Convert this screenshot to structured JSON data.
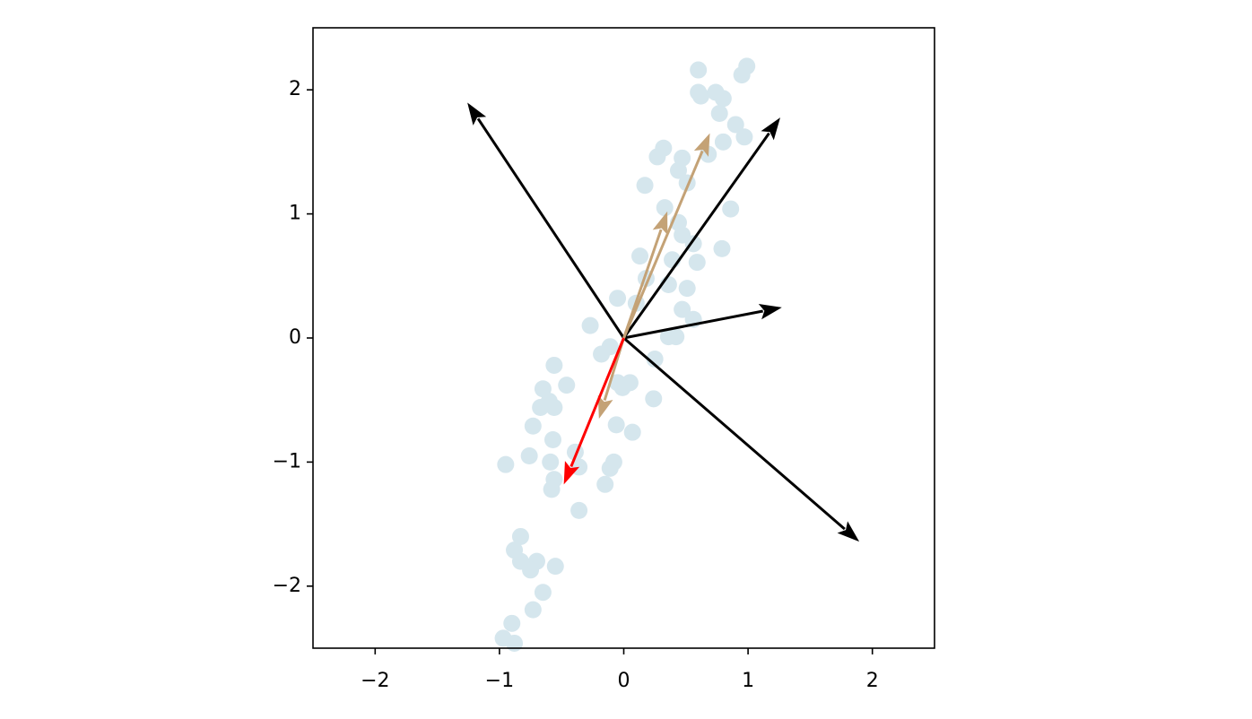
{
  "chart_data": {
    "type": "scatter",
    "xlim": [
      -2.5,
      2.5
    ],
    "ylim": [
      -2.5,
      2.5
    ],
    "xticks": [
      {
        "value": -2,
        "label": "−2"
      },
      {
        "value": -1,
        "label": "−1"
      },
      0,
      1,
      2
    ],
    "yticks": [
      {
        "value": -2,
        "label": "−2"
      },
      {
        "value": -1,
        "label": "−1"
      },
      0,
      1,
      2
    ],
    "points": {
      "color": "#d5e6ed",
      "x": [
        0.6,
        0.99,
        0.95,
        0.6,
        0.62,
        0.74,
        0.8,
        0.77,
        0.9,
        0.97,
        0.8,
        0.32,
        0.27,
        0.47,
        0.68,
        0.44,
        0.51,
        0.17,
        0.33,
        0.86,
        0.44,
        0.47,
        0.56,
        0.79,
        0.13,
        0.39,
        0.59,
        0.18,
        0.36,
        0.51,
        -0.05,
        0.1,
        0.47,
        0.56,
        -0.27,
        0.42,
        0.36,
        -0.11,
        -0.18,
        0.25,
        -0.56,
        -0.46,
        -0.65,
        -0.05,
        0.05,
        -0.01,
        0.24,
        -0.6,
        -0.56,
        -0.67,
        -0.73,
        -0.06,
        0.07,
        -0.57,
        -0.76,
        -0.39,
        -0.59,
        -0.95,
        -0.08,
        -0.11,
        -0.36,
        -0.56,
        -0.58,
        -0.15,
        -0.36,
        -0.83,
        -0.88,
        -0.83,
        -0.7,
        -0.75,
        -0.55,
        -0.65,
        -0.73,
        -0.9,
        -0.97,
        -0.88
      ],
      "y": [
        2.16,
        2.19,
        2.12,
        1.98,
        1.95,
        1.98,
        1.93,
        1.81,
        1.72,
        1.62,
        1.58,
        1.53,
        1.46,
        1.45,
        1.48,
        1.35,
        1.25,
        1.23,
        1.05,
        1.04,
        0.93,
        0.83,
        0.76,
        0.72,
        0.66,
        0.63,
        0.61,
        0.48,
        0.43,
        0.4,
        0.32,
        0.28,
        0.23,
        0.15,
        0.1,
        0.01,
        0.01,
        -0.07,
        -0.13,
        -0.17,
        -0.22,
        -0.38,
        -0.41,
        -0.36,
        -0.36,
        -0.4,
        -0.49,
        -0.51,
        -0.56,
        -0.56,
        -0.71,
        -0.7,
        -0.76,
        -0.82,
        -0.95,
        -0.92,
        -1.0,
        -1.02,
        -1.0,
        -1.05,
        -1.04,
        -1.14,
        -1.22,
        -1.18,
        -1.39,
        -1.6,
        -1.71,
        -1.8,
        -1.8,
        -1.87,
        -1.84,
        -2.05,
        -2.19,
        -2.3,
        -2.42,
        -2.46
      ]
    },
    "arrows": [
      {
        "color": "#000000",
        "x": [
          0,
          -1.24
        ],
        "y": [
          0,
          1.87
        ]
      },
      {
        "color": "#000000",
        "x": [
          0,
          1.24
        ],
        "y": [
          0,
          1.75
        ]
      },
      {
        "color": "#000000",
        "x": [
          0,
          1.24
        ],
        "y": [
          0,
          0.24
        ]
      },
      {
        "color": "#000000",
        "x": [
          0,
          1.87
        ],
        "y": [
          0,
          -1.62
        ]
      },
      {
        "color": "#c4a276",
        "x": [
          0,
          0.68
        ],
        "y": [
          0,
          1.62
        ]
      },
      {
        "color": "#c4a276",
        "x": [
          0,
          0.34
        ],
        "y": [
          0,
          0.99
        ]
      },
      {
        "color": "#c4a276",
        "x": [
          0,
          -0.19
        ],
        "y": [
          0,
          -0.62
        ]
      },
      {
        "color": "#ff0000",
        "x": [
          0,
          -0.47
        ],
        "y": [
          0,
          -1.15
        ]
      }
    ]
  }
}
